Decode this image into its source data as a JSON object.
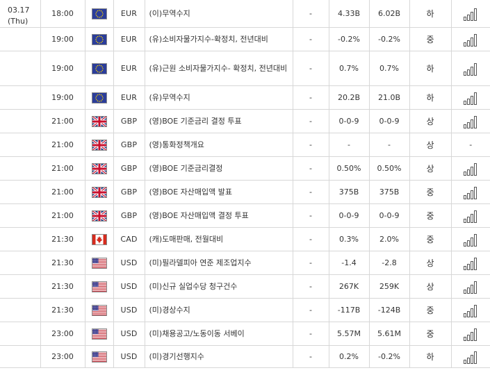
{
  "date": {
    "day": "03.17",
    "weekday": "(Thu)"
  },
  "icons": {
    "eu": "eu-flag-icon",
    "gb": "uk-flag-icon",
    "ca": "canada-flag-icon",
    "us": "us-flag-icon",
    "chart": "bar-chart-icon"
  },
  "colors": {
    "border": "#d7d7d7",
    "text": "#333333",
    "chart_icon": "#555555"
  },
  "rows": [
    {
      "time": "18:00",
      "flag": "eu",
      "currency": "EUR",
      "name": "(이)무역수지",
      "previous_marker": "-",
      "forecast": "4.33B",
      "actual": "6.02B",
      "importance": "하",
      "action": "chart"
    },
    {
      "time": "19:00",
      "flag": "eu",
      "currency": "EUR",
      "name": "(유)소비자물가지수-확정치, 전년대비",
      "previous_marker": "-",
      "forecast": "-0.2%",
      "actual": "-0.2%",
      "importance": "중",
      "action": "chart"
    },
    {
      "time": "19:00",
      "flag": "eu",
      "currency": "EUR",
      "name": "(유)근원 소비자물가지수- 확정치, 전년대비",
      "previous_marker": "-",
      "forecast": "0.7%",
      "actual": "0.7%",
      "importance": "하",
      "action": "chart"
    },
    {
      "time": "19:00",
      "flag": "eu",
      "currency": "EUR",
      "name": "(유)무역수지",
      "previous_marker": "-",
      "forecast": "20.2B",
      "actual": "21.0B",
      "importance": "하",
      "action": "chart"
    },
    {
      "time": "21:00",
      "flag": "gb",
      "currency": "GBP",
      "name": "(영)BOE 기준금리 결정 투표",
      "previous_marker": "-",
      "forecast": "0-0-9",
      "actual": "0-0-9",
      "importance": "상",
      "action": "chart"
    },
    {
      "time": "21:00",
      "flag": "gb",
      "currency": "GBP",
      "name": "(영)통화정책개요",
      "previous_marker": "-",
      "forecast": "-",
      "actual": "-",
      "importance": "상",
      "action": "-"
    },
    {
      "time": "21:00",
      "flag": "gb",
      "currency": "GBP",
      "name": "(영)BOE 기준금리결정",
      "previous_marker": "-",
      "forecast": "0.50%",
      "actual": "0.50%",
      "importance": "상",
      "action": "chart"
    },
    {
      "time": "21:00",
      "flag": "gb",
      "currency": "GBP",
      "name": "(영)BOE 자산매입액 발표",
      "previous_marker": "-",
      "forecast": "375B",
      "actual": "375B",
      "importance": "중",
      "action": "chart"
    },
    {
      "time": "21:00",
      "flag": "gb",
      "currency": "GBP",
      "name": "(영)BOE 자산매입액 결정 투표",
      "previous_marker": "-",
      "forecast": "0-0-9",
      "actual": "0-0-9",
      "importance": "중",
      "action": "chart"
    },
    {
      "time": "21:30",
      "flag": "ca",
      "currency": "CAD",
      "name": "(캐)도매판매, 전월대비",
      "previous_marker": "-",
      "forecast": "0.3%",
      "actual": "2.0%",
      "importance": "중",
      "action": "chart"
    },
    {
      "time": "21:30",
      "flag": "us",
      "currency": "USD",
      "name": "(미)필라델피아 연준 제조업지수",
      "previous_marker": "-",
      "forecast": "-1.4",
      "actual": "-2.8",
      "importance": "상",
      "action": "chart"
    },
    {
      "time": "21:30",
      "flag": "us",
      "currency": "USD",
      "name": "(미)신규 실업수당 청구건수",
      "previous_marker": "-",
      "forecast": "267K",
      "actual": "259K",
      "importance": "상",
      "action": "chart"
    },
    {
      "time": "21:30",
      "flag": "us",
      "currency": "USD",
      "name": "(미)경상수지",
      "previous_marker": "-",
      "forecast": "-117B",
      "actual": "-124B",
      "importance": "중",
      "action": "chart"
    },
    {
      "time": "23:00",
      "flag": "us",
      "currency": "USD",
      "name": "(미)채용공고/노동이동 서베이",
      "previous_marker": "-",
      "forecast": "5.57M",
      "actual": "5.61M",
      "importance": "중",
      "action": "chart"
    },
    {
      "time": "23:00",
      "flag": "us",
      "currency": "USD",
      "name": "(미)경기선행지수",
      "previous_marker": "-",
      "forecast": "0.2%",
      "actual": "-0.2%",
      "importance": "하",
      "action": "chart"
    }
  ]
}
